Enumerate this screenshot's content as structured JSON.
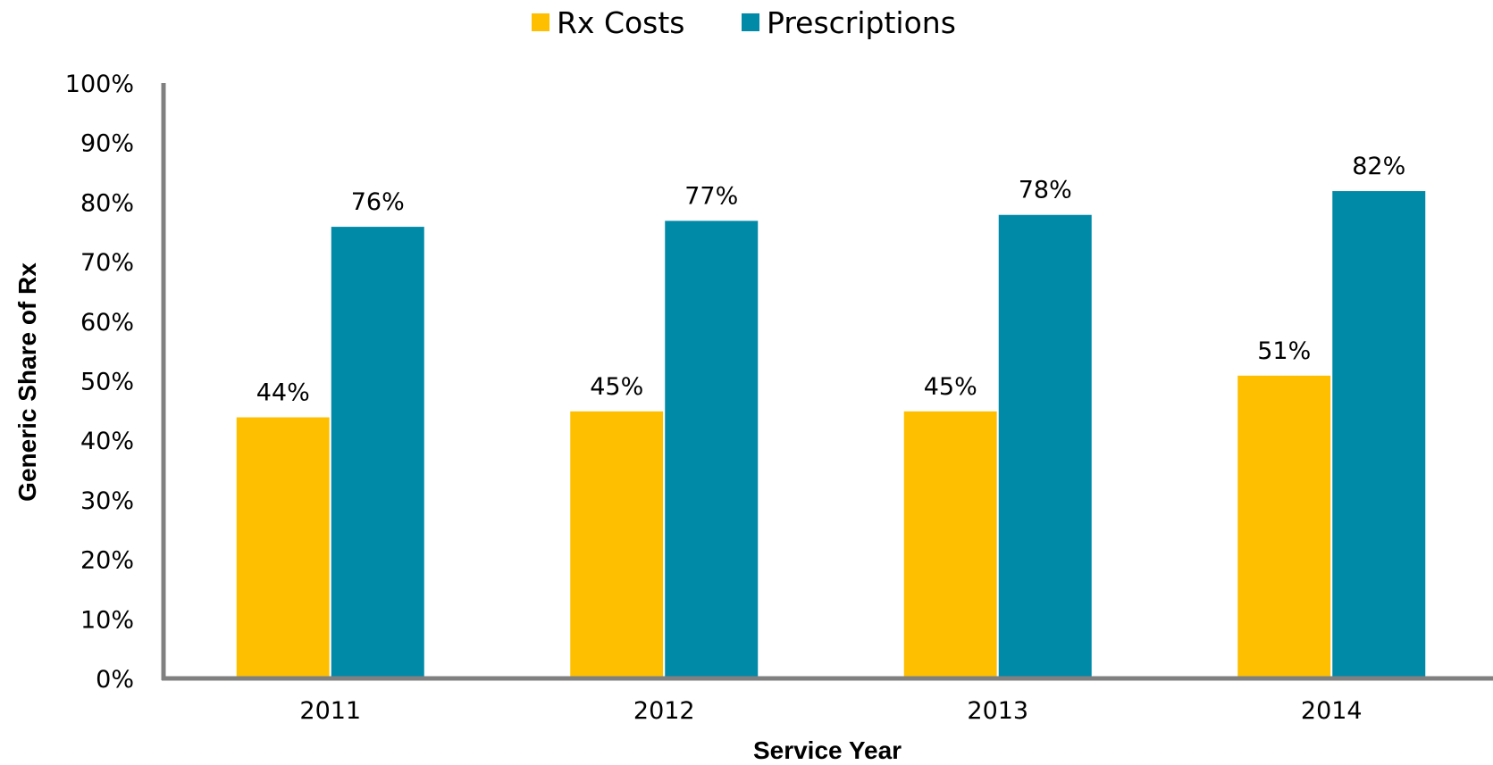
{
  "chart_data": {
    "type": "bar",
    "title": "",
    "xlabel": "Service Year",
    "ylabel": "Generic Share of Rx",
    "categories": [
      "2011",
      "2012",
      "2013",
      "2014"
    ],
    "series": [
      {
        "name": "Rx Costs",
        "color": "#FDBF00",
        "values": [
          44,
          45,
          45,
          51
        ],
        "labels": [
          "44%",
          "45%",
          "45%",
          "51%"
        ]
      },
      {
        "name": "Prescriptions",
        "color": "#008AA8",
        "values": [
          76,
          77,
          78,
          82
        ],
        "labels": [
          "76%",
          "77%",
          "78%",
          "82%"
        ]
      }
    ],
    "ylim": [
      0,
      100
    ],
    "yticks": [
      0,
      10,
      20,
      30,
      40,
      50,
      60,
      70,
      80,
      90,
      100
    ],
    "ytick_labels": [
      "0%",
      "10%",
      "20%",
      "30%",
      "40%",
      "50%",
      "60%",
      "70%",
      "80%",
      "90%",
      "100%"
    ],
    "grid": false,
    "legend_position": "top-center",
    "axis_color": "#808080"
  }
}
